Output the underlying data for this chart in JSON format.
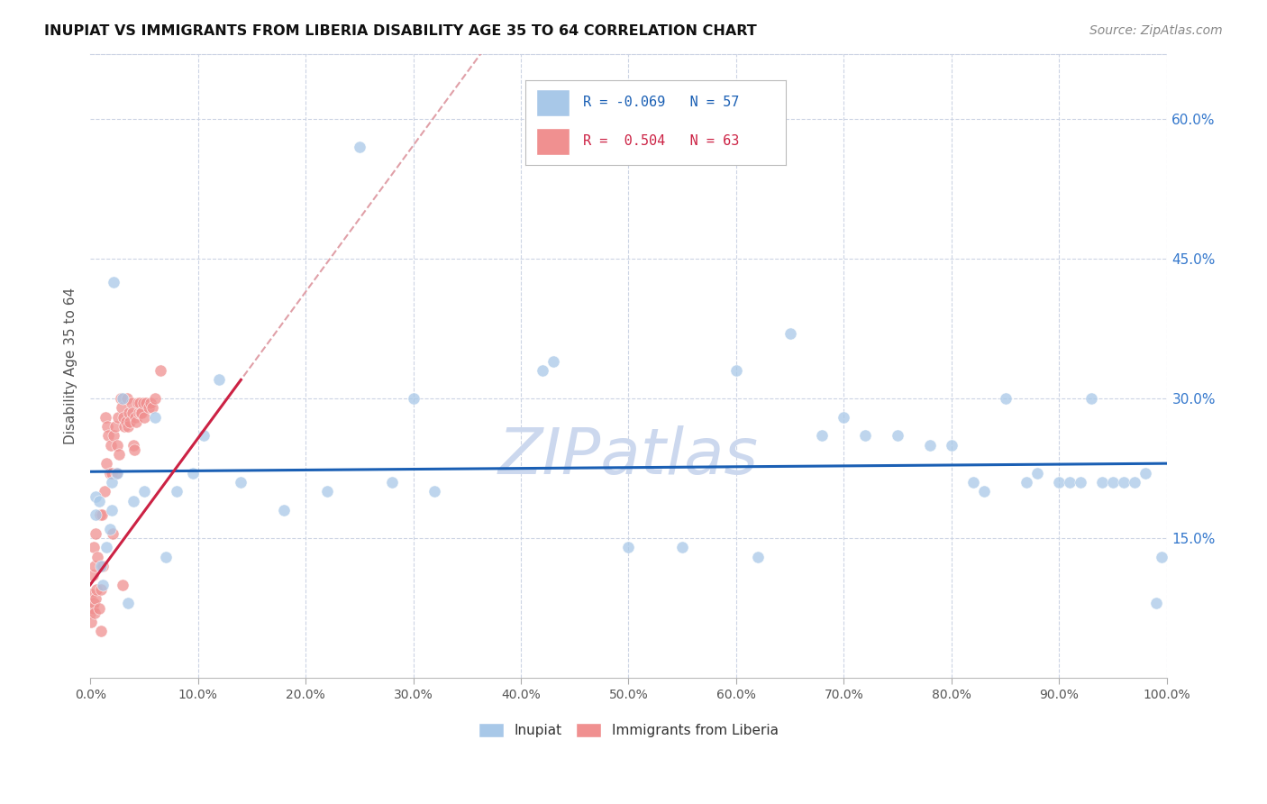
{
  "title": "INUPIAT VS IMMIGRANTS FROM LIBERIA DISABILITY AGE 35 TO 64 CORRELATION CHART",
  "source": "Source: ZipAtlas.com",
  "ylabel": "Disability Age 35 to 64",
  "xlim": [
    0,
    1.0
  ],
  "ylim": [
    0,
    0.67
  ],
  "ytick_positions": [
    0.15,
    0.3,
    0.45,
    0.6
  ],
  "ytick_labels": [
    "15.0%",
    "30.0%",
    "45.0%",
    "60.0%"
  ],
  "inupiat_color": "#a8c8e8",
  "liberia_color": "#f09090",
  "trend_inupiat_color": "#1a5fb4",
  "trend_liberia_color": "#cc2244",
  "trend_liberia_dashed_color": "#e0a0a8",
  "R_inupiat": -0.069,
  "N_inupiat": 57,
  "R_liberia": 0.504,
  "N_liberia": 63,
  "inupiat_x": [
    0.005,
    0.005,
    0.008,
    0.01,
    0.012,
    0.015,
    0.018,
    0.02,
    0.02,
    0.022,
    0.025,
    0.03,
    0.035,
    0.04,
    0.05,
    0.06,
    0.07,
    0.08,
    0.095,
    0.105,
    0.12,
    0.14,
    0.18,
    0.22,
    0.25,
    0.28,
    0.3,
    0.32,
    0.42,
    0.43,
    0.5,
    0.55,
    0.6,
    0.62,
    0.65,
    0.68,
    0.7,
    0.72,
    0.75,
    0.78,
    0.8,
    0.82,
    0.83,
    0.85,
    0.87,
    0.88,
    0.9,
    0.91,
    0.92,
    0.93,
    0.94,
    0.95,
    0.96,
    0.97,
    0.98,
    0.99,
    0.995
  ],
  "inupiat_y": [
    0.195,
    0.175,
    0.19,
    0.12,
    0.1,
    0.14,
    0.16,
    0.18,
    0.21,
    0.425,
    0.22,
    0.3,
    0.08,
    0.19,
    0.2,
    0.28,
    0.13,
    0.2,
    0.22,
    0.26,
    0.32,
    0.21,
    0.18,
    0.2,
    0.57,
    0.21,
    0.3,
    0.2,
    0.33,
    0.34,
    0.14,
    0.14,
    0.33,
    0.13,
    0.37,
    0.26,
    0.28,
    0.26,
    0.26,
    0.25,
    0.25,
    0.21,
    0.2,
    0.3,
    0.21,
    0.22,
    0.21,
    0.21,
    0.21,
    0.3,
    0.21,
    0.21,
    0.21,
    0.21,
    0.22,
    0.08,
    0.13
  ],
  "liberia_x": [
    0.0,
    0.001,
    0.001,
    0.002,
    0.002,
    0.003,
    0.003,
    0.004,
    0.004,
    0.005,
    0.005,
    0.006,
    0.007,
    0.008,
    0.009,
    0.01,
    0.01,
    0.011,
    0.012,
    0.013,
    0.014,
    0.015,
    0.016,
    0.017,
    0.018,
    0.019,
    0.02,
    0.021,
    0.022,
    0.023,
    0.024,
    0.025,
    0.026,
    0.027,
    0.028,
    0.029,
    0.03,
    0.031,
    0.032,
    0.033,
    0.034,
    0.035,
    0.036,
    0.037,
    0.038,
    0.039,
    0.04,
    0.041,
    0.042,
    0.043,
    0.044,
    0.045,
    0.046,
    0.047,
    0.048,
    0.049,
    0.05,
    0.052,
    0.054,
    0.056,
    0.058,
    0.06,
    0.065
  ],
  "liberia_y": [
    0.07,
    0.06,
    0.09,
    0.075,
    0.11,
    0.08,
    0.14,
    0.07,
    0.12,
    0.085,
    0.155,
    0.095,
    0.13,
    0.075,
    0.175,
    0.05,
    0.095,
    0.175,
    0.12,
    0.2,
    0.28,
    0.23,
    0.27,
    0.26,
    0.22,
    0.25,
    0.22,
    0.155,
    0.26,
    0.27,
    0.22,
    0.25,
    0.28,
    0.24,
    0.3,
    0.29,
    0.1,
    0.28,
    0.27,
    0.275,
    0.3,
    0.27,
    0.285,
    0.275,
    0.295,
    0.285,
    0.25,
    0.245,
    0.28,
    0.275,
    0.295,
    0.285,
    0.295,
    0.285,
    0.285,
    0.295,
    0.28,
    0.295,
    0.29,
    0.295,
    0.29,
    0.3,
    0.33
  ],
  "background_color": "#ffffff",
  "grid_color": "#ccd4e4",
  "watermark_color": "#ccd8ee"
}
